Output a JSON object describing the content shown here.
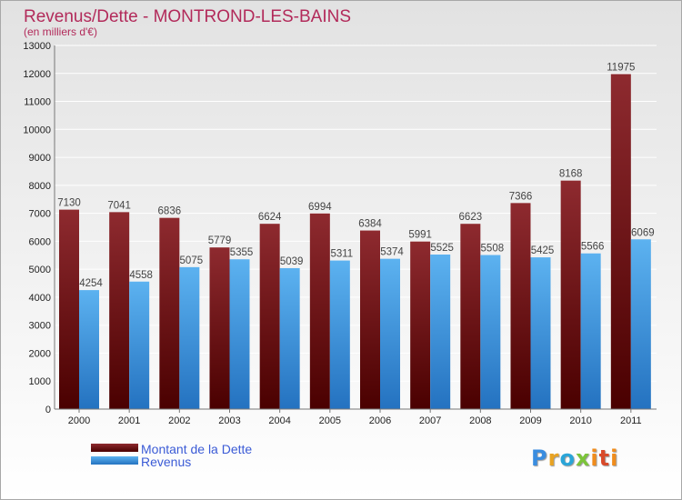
{
  "header": {
    "title": "Revenus/Dette - MONTROND-LES-BAINS",
    "subtitle": "(en milliers d'€)"
  },
  "brand": {
    "name": "Proxiti"
  },
  "colors": {
    "debt": "#7a1b20",
    "debt_dark": "#4a0000",
    "revenue": "#4aa3e8",
    "revenue_dark": "#2472c0",
    "title": "#b22a5a",
    "legend_text": "#3b5bd6"
  },
  "chart_data": {
    "type": "bar",
    "categories": [
      "2000",
      "2001",
      "2002",
      "2003",
      "2004",
      "2005",
      "2006",
      "2007",
      "2008",
      "2009",
      "2010",
      "2011"
    ],
    "series": [
      {
        "name": "Montant de la Dette",
        "values": [
          7130,
          7041,
          6836,
          5779,
          6624,
          6994,
          6384,
          5991,
          6623,
          7366,
          8168,
          11975
        ]
      },
      {
        "name": "Revenus",
        "values": [
          4254,
          4558,
          5075,
          5355,
          5039,
          5311,
          5374,
          5525,
          5508,
          5425,
          5566,
          6069
        ]
      }
    ],
    "ylim": [
      0,
      13000
    ],
    "yticks": [
      0,
      1000,
      2000,
      3000,
      4000,
      5000,
      6000,
      7000,
      8000,
      9000,
      10000,
      11000,
      12000,
      13000
    ],
    "grid": true,
    "legend": "bottom-left"
  }
}
